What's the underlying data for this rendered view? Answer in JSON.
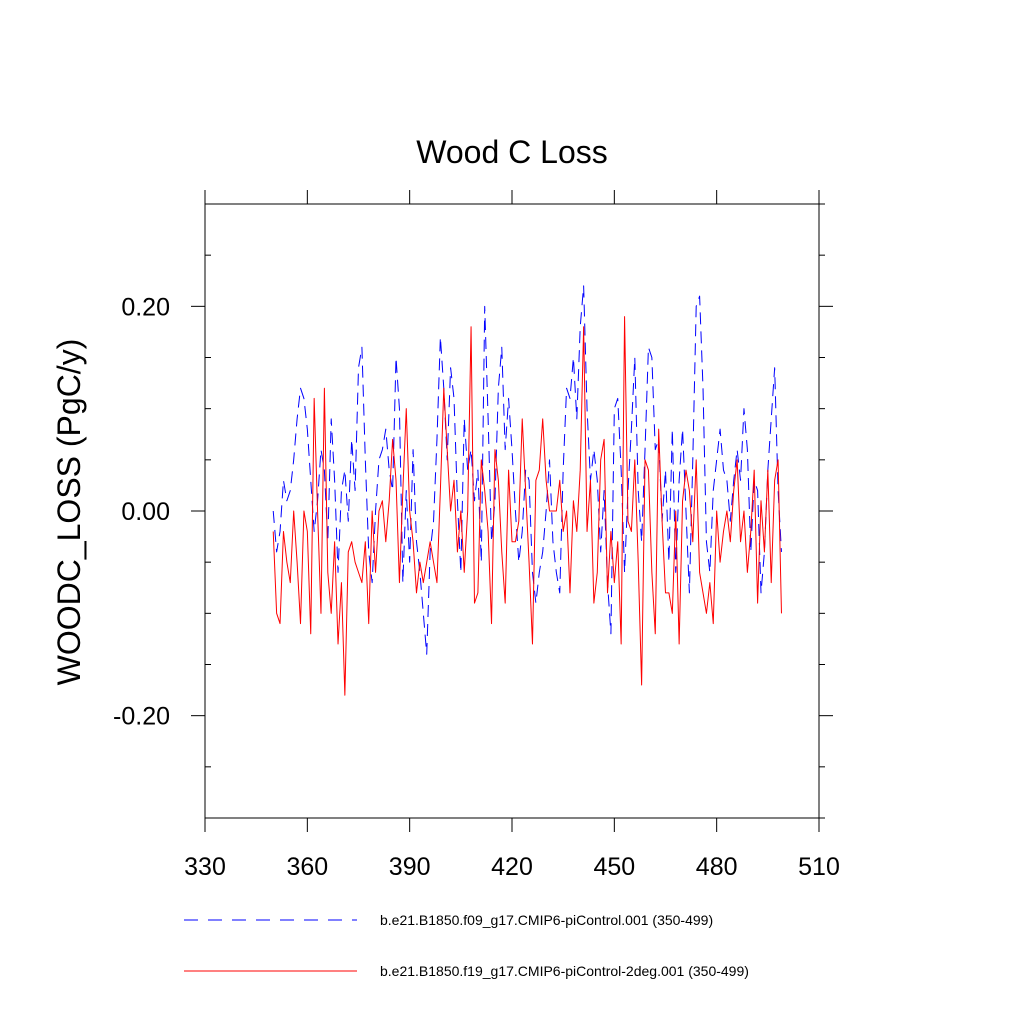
{
  "chart_data": {
    "type": "line",
    "title": "Wood C Loss",
    "xlabel": "",
    "ylabel": "WOODC_LOSS  (PgC/y)",
    "xlim": [
      330,
      510
    ],
    "ylim": [
      -0.3,
      0.3
    ],
    "x_ticks": [
      330,
      360,
      390,
      420,
      450,
      480,
      510
    ],
    "x_tick_labels": [
      "330",
      "360",
      "390",
      "420",
      "450",
      "480",
      "510"
    ],
    "y_ticks": [
      -0.2,
      0.0,
      0.2
    ],
    "y_tick_labels": [
      "-0.20",
      "0.00",
      "0.20"
    ],
    "x": [
      350,
      351,
      352,
      353,
      354,
      355,
      356,
      357,
      358,
      359,
      360,
      361,
      362,
      363,
      364,
      365,
      366,
      367,
      368,
      369,
      370,
      371,
      372,
      373,
      374,
      375,
      376,
      377,
      378,
      379,
      380,
      381,
      382,
      383,
      384,
      385,
      386,
      387,
      388,
      389,
      390,
      391,
      392,
      393,
      394,
      395,
      396,
      397,
      398,
      399,
      400,
      401,
      402,
      403,
      404,
      405,
      406,
      407,
      408,
      409,
      410,
      411,
      412,
      413,
      414,
      415,
      416,
      417,
      418,
      419,
      420,
      421,
      422,
      423,
      424,
      425,
      426,
      427,
      428,
      429,
      430,
      431,
      432,
      433,
      434,
      435,
      436,
      437,
      438,
      439,
      440,
      441,
      442,
      443,
      444,
      445,
      446,
      447,
      448,
      449,
      450,
      451,
      452,
      453,
      454,
      455,
      456,
      457,
      458,
      459,
      460,
      461,
      462,
      463,
      464,
      465,
      466,
      467,
      468,
      469,
      470,
      471,
      472,
      473,
      474,
      475,
      476,
      477,
      478,
      479,
      480,
      481,
      482,
      483,
      484,
      485,
      486,
      487,
      488,
      489,
      490,
      491,
      492,
      493,
      494,
      495,
      496,
      497,
      498,
      499
    ],
    "series": [
      {
        "name": "b.e21.B1850.f09_g17.CMIP6-piControl.001 (350-499)",
        "color": "#0000ff",
        "dash": "dashed",
        "values": [
          0.0,
          -0.04,
          -0.02,
          0.03,
          0.01,
          0.02,
          0.05,
          0.09,
          0.12,
          0.11,
          0.08,
          0.03,
          -0.02,
          0.01,
          0.06,
          0.04,
          -0.03,
          0.09,
          0.03,
          -0.06,
          0.02,
          0.04,
          -0.01,
          0.07,
          0.02,
          0.14,
          0.16,
          0.05,
          -0.04,
          -0.07,
          0.0,
          0.05,
          0.06,
          0.08,
          0.04,
          0.02,
          0.15,
          0.1,
          -0.07,
          0.02,
          -0.05,
          0.06,
          -0.03,
          -0.06,
          -0.1,
          -0.14,
          -0.04,
          -0.01,
          0.07,
          0.17,
          0.12,
          0.05,
          0.14,
          0.11,
          0.01,
          -0.06,
          0.09,
          0.04,
          0.06,
          0.01,
          0.04,
          -0.05,
          0.2,
          0.09,
          -0.03,
          0.01,
          0.12,
          0.16,
          0.06,
          0.11,
          0.06,
          0.0,
          -0.05,
          -0.02,
          0.04,
          0.03,
          -0.06,
          -0.09,
          -0.06,
          -0.04,
          0.0,
          0.05,
          -0.03,
          -0.06,
          -0.08,
          0.04,
          0.12,
          0.11,
          0.15,
          0.09,
          0.18,
          0.22,
          0.1,
          0.03,
          0.06,
          0.03,
          -0.04,
          0.02,
          -0.07,
          -0.12,
          0.1,
          0.11,
          0.04,
          -0.06,
          0.02,
          0.08,
          0.15,
          0.02,
          -0.03,
          0.06,
          0.16,
          0.15,
          0.06,
          0.07,
          -0.01,
          0.04,
          -0.05,
          0.08,
          -0.06,
          0.03,
          0.08,
          0.0,
          -0.08,
          0.05,
          0.2,
          0.21,
          0.12,
          -0.03,
          -0.06,
          0.02,
          0.05,
          0.08,
          0.04,
          0.03,
          -0.01,
          0.03,
          0.06,
          0.03,
          0.1,
          0.06,
          -0.04,
          0.03,
          0.02,
          -0.08,
          -0.04,
          0.04,
          0.09,
          0.14,
          0.02,
          -0.04
        ]
      },
      {
        "name": "b.e21.B1850.f19_g17.CMIP6-piControl-2deg.001 (350-499)",
        "color": "#ff0000",
        "dash": "solid",
        "values": [
          -0.02,
          -0.1,
          -0.11,
          -0.02,
          -0.05,
          -0.07,
          0.0,
          -0.05,
          -0.11,
          0.0,
          -0.02,
          -0.12,
          0.11,
          0.0,
          -0.1,
          0.12,
          -0.06,
          -0.1,
          -0.03,
          -0.13,
          -0.07,
          -0.18,
          -0.04,
          -0.03,
          -0.05,
          -0.06,
          -0.07,
          -0.03,
          -0.11,
          0.0,
          -0.06,
          0.0,
          0.01,
          -0.03,
          0.01,
          0.07,
          0.03,
          -0.07,
          0.02,
          0.1,
          0.0,
          -0.03,
          -0.08,
          -0.05,
          -0.07,
          -0.05,
          -0.03,
          -0.05,
          -0.07,
          0.02,
          0.12,
          0.06,
          0.0,
          0.03,
          -0.04,
          0.0,
          -0.06,
          0.0,
          0.18,
          -0.09,
          -0.08,
          0.05,
          0.02,
          -0.02,
          -0.11,
          0.06,
          0.03,
          -0.04,
          -0.09,
          0.04,
          -0.03,
          -0.03,
          -0.01,
          0.09,
          0.02,
          -0.05,
          -0.13,
          0.03,
          0.04,
          0.09,
          0.03,
          0.0,
          0.0,
          0.0,
          0.03,
          -0.02,
          0.0,
          -0.08,
          0.01,
          -0.02,
          0.04,
          0.18,
          -0.02,
          0.03,
          -0.09,
          -0.06,
          0.05,
          0.07,
          -0.08,
          -0.02,
          -0.07,
          -0.03,
          -0.13,
          0.19,
          -0.01,
          -0.02,
          0.05,
          -0.05,
          -0.17,
          0.05,
          0.04,
          -0.06,
          -0.12,
          0.08,
          -0.01,
          -0.08,
          -0.08,
          -0.1,
          0.0,
          -0.13,
          0.01,
          0.04,
          0.02,
          -0.03,
          0.05,
          -0.06,
          -0.08,
          -0.1,
          -0.07,
          -0.11,
          0.0,
          -0.05,
          -0.02,
          0.0,
          -0.03,
          0.02,
          0.05,
          -0.03,
          0.0,
          -0.06,
          -0.02,
          0.04,
          -0.09,
          0.01,
          -0.04,
          0.04,
          -0.07,
          0.03,
          0.05,
          -0.1
        ]
      }
    ]
  }
}
